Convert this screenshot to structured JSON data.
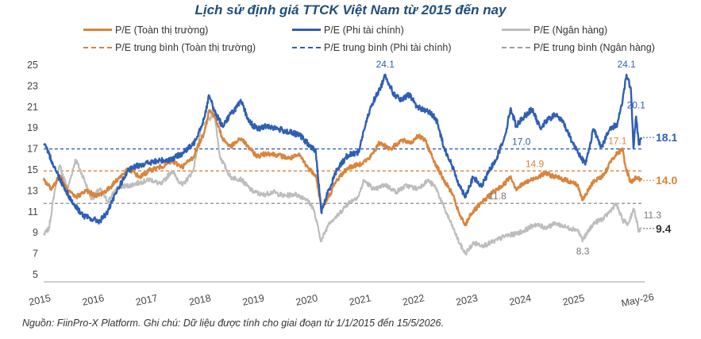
{
  "chart_data": {
    "type": "line",
    "title": "Lịch sử định giá TTCK Việt Nam từ 2015 đến nay",
    "source_note": "Nguồn: FiinPro-X Platform. Ghi chú: Dữ liệu được tính cho giai đoạn từ 1/1/2015 đến 15/5/2026.",
    "x_ticks": [
      "2015",
      "2016",
      "2017",
      "2018",
      "2019",
      "2020",
      "2021",
      "2022",
      "2023",
      "2024",
      "2025",
      "May-26"
    ],
    "y_ticks": [
      5,
      7,
      9,
      11,
      13,
      15,
      17,
      19,
      21,
      23,
      25
    ],
    "ylim": [
      5,
      25
    ],
    "grid": false,
    "legend_position": "top",
    "series": [
      {
        "name": "P/E (Toàn thị trường)",
        "color": "#d9843c",
        "style": "solid",
        "points": [
          [
            2015.0,
            14.0
          ],
          [
            2015.15,
            13.2
          ],
          [
            2015.3,
            14.5
          ],
          [
            2015.45,
            13.0
          ],
          [
            2015.6,
            12.4
          ],
          [
            2015.8,
            13.0
          ],
          [
            2016.0,
            12.5
          ],
          [
            2016.2,
            13.1
          ],
          [
            2016.4,
            14.2
          ],
          [
            2016.6,
            15.1
          ],
          [
            2016.8,
            14.3
          ],
          [
            2017.0,
            15.0
          ],
          [
            2017.2,
            15.3
          ],
          [
            2017.4,
            15.8
          ],
          [
            2017.6,
            15.3
          ],
          [
            2017.8,
            16.2
          ],
          [
            2018.0,
            18.5
          ],
          [
            2018.1,
            20.7
          ],
          [
            2018.2,
            20.2
          ],
          [
            2018.35,
            18.0
          ],
          [
            2018.5,
            17.2
          ],
          [
            2018.7,
            18.0
          ],
          [
            2018.9,
            16.8
          ],
          [
            2019.0,
            16.3
          ],
          [
            2019.2,
            16.6
          ],
          [
            2019.4,
            16.4
          ],
          [
            2019.6,
            16.1
          ],
          [
            2019.8,
            16.4
          ],
          [
            2019.95,
            15.2
          ],
          [
            2020.1,
            14.5
          ],
          [
            2020.2,
            11.4
          ],
          [
            2020.3,
            12.0
          ],
          [
            2020.5,
            14.1
          ],
          [
            2020.7,
            15.2
          ],
          [
            2020.9,
            15.5
          ],
          [
            2021.0,
            15.8
          ],
          [
            2021.1,
            16.1
          ],
          [
            2021.3,
            17.6
          ],
          [
            2021.5,
            17.0
          ],
          [
            2021.7,
            17.8
          ],
          [
            2021.9,
            17.6
          ],
          [
            2022.0,
            18.3
          ],
          [
            2022.15,
            17.8
          ],
          [
            2022.3,
            16.0
          ],
          [
            2022.5,
            14.0
          ],
          [
            2022.65,
            12.8
          ],
          [
            2022.8,
            10.6
          ],
          [
            2022.9,
            9.7
          ],
          [
            2023.0,
            10.8
          ],
          [
            2023.2,
            11.8
          ],
          [
            2023.4,
            12.8
          ],
          [
            2023.6,
            13.5
          ],
          [
            2023.75,
            14.4
          ],
          [
            2023.85,
            13.2
          ],
          [
            2024.0,
            13.7
          ],
          [
            2024.2,
            14.2
          ],
          [
            2024.4,
            14.7
          ],
          [
            2024.6,
            14.3
          ],
          [
            2024.8,
            14.0
          ],
          [
            2025.0,
            13.6
          ],
          [
            2025.1,
            12.1
          ],
          [
            2025.3,
            13.9
          ],
          [
            2025.5,
            14.5
          ],
          [
            2025.65,
            16.1
          ],
          [
            2025.75,
            16.6
          ],
          [
            2025.85,
            16.9
          ],
          [
            2025.9,
            15.3
          ],
          [
            2026.0,
            13.8
          ],
          [
            2026.1,
            14.3
          ],
          [
            2026.2,
            14.0
          ]
        ]
      },
      {
        "name": "P/E (Phi tài chính)",
        "color": "#2f5fb3",
        "style": "solid",
        "points": [
          [
            2015.0,
            17.5
          ],
          [
            2015.1,
            16.5
          ],
          [
            2015.25,
            14.7
          ],
          [
            2015.4,
            13.2
          ],
          [
            2015.55,
            11.8
          ],
          [
            2015.75,
            10.6
          ],
          [
            2015.9,
            10.3
          ],
          [
            2016.05,
            10.1
          ],
          [
            2016.2,
            11.0
          ],
          [
            2016.4,
            13.3
          ],
          [
            2016.6,
            15.0
          ],
          [
            2016.8,
            15.5
          ],
          [
            2017.0,
            15.7
          ],
          [
            2017.2,
            15.9
          ],
          [
            2017.4,
            16.0
          ],
          [
            2017.6,
            16.6
          ],
          [
            2017.8,
            17.4
          ],
          [
            2018.0,
            19.8
          ],
          [
            2018.1,
            22.1
          ],
          [
            2018.2,
            20.6
          ],
          [
            2018.35,
            19.2
          ],
          [
            2018.5,
            20.3
          ],
          [
            2018.7,
            21.5
          ],
          [
            2018.85,
            19.6
          ],
          [
            2019.0,
            18.9
          ],
          [
            2019.2,
            19.2
          ],
          [
            2019.4,
            18.9
          ],
          [
            2019.6,
            18.6
          ],
          [
            2019.8,
            18.3
          ],
          [
            2019.95,
            17.5
          ],
          [
            2020.1,
            16.7
          ],
          [
            2020.2,
            11.0
          ],
          [
            2020.3,
            12.5
          ],
          [
            2020.5,
            15.1
          ],
          [
            2020.7,
            16.4
          ],
          [
            2020.9,
            16.7
          ],
          [
            2021.0,
            18.8
          ],
          [
            2021.15,
            21.3
          ],
          [
            2021.3,
            22.7
          ],
          [
            2021.4,
            24.1
          ],
          [
            2021.55,
            22.3
          ],
          [
            2021.7,
            21.6
          ],
          [
            2021.85,
            22.2
          ],
          [
            2022.0,
            21.0
          ],
          [
            2022.2,
            20.6
          ],
          [
            2022.35,
            19.9
          ],
          [
            2022.5,
            17.2
          ],
          [
            2022.65,
            15.4
          ],
          [
            2022.8,
            13.4
          ],
          [
            2022.9,
            12.5
          ],
          [
            2023.05,
            14.3
          ],
          [
            2023.2,
            13.4
          ],
          [
            2023.35,
            14.9
          ],
          [
            2023.5,
            16.3
          ],
          [
            2023.65,
            18.4
          ],
          [
            2023.75,
            20.9
          ],
          [
            2023.85,
            19.2
          ],
          [
            2024.0,
            20.1
          ],
          [
            2024.15,
            20.8
          ],
          [
            2024.3,
            19.0
          ],
          [
            2024.45,
            19.8
          ],
          [
            2024.6,
            20.3
          ],
          [
            2024.75,
            19.4
          ],
          [
            2024.9,
            17.7
          ],
          [
            2025.05,
            16.4
          ],
          [
            2025.15,
            15.5
          ],
          [
            2025.3,
            18.9
          ],
          [
            2025.45,
            17.2
          ],
          [
            2025.6,
            18.8
          ],
          [
            2025.75,
            19.4
          ],
          [
            2025.85,
            21.8
          ],
          [
            2025.92,
            24.1
          ],
          [
            2026.0,
            22.8
          ],
          [
            2026.05,
            17.1
          ],
          [
            2026.1,
            20.1
          ],
          [
            2026.15,
            17.4
          ],
          [
            2026.2,
            18.1
          ]
        ]
      },
      {
        "name": "P/E (Ngân hàng)",
        "color": "#bdbdbd",
        "style": "solid",
        "points": [
          [
            2015.0,
            8.8
          ],
          [
            2015.1,
            9.4
          ],
          [
            2015.2,
            12.8
          ],
          [
            2015.3,
            15.4
          ],
          [
            2015.45,
            13.2
          ],
          [
            2015.6,
            16.0
          ],
          [
            2015.75,
            14.2
          ],
          [
            2015.9,
            12.2
          ],
          [
            2016.05,
            13.2
          ],
          [
            2016.2,
            12.0
          ],
          [
            2016.4,
            13.4
          ],
          [
            2016.6,
            13.5
          ],
          [
            2016.8,
            13.8
          ],
          [
            2017.0,
            14.1
          ],
          [
            2017.2,
            13.6
          ],
          [
            2017.4,
            14.9
          ],
          [
            2017.6,
            13.5
          ],
          [
            2017.8,
            14.9
          ],
          [
            2017.95,
            19.0
          ],
          [
            2018.1,
            19.8
          ],
          [
            2018.2,
            20.4
          ],
          [
            2018.3,
            16.3
          ],
          [
            2018.5,
            14.3
          ],
          [
            2018.7,
            14.1
          ],
          [
            2018.9,
            13.0
          ],
          [
            2019.1,
            12.6
          ],
          [
            2019.3,
            12.9
          ],
          [
            2019.5,
            12.5
          ],
          [
            2019.7,
            12.7
          ],
          [
            2019.9,
            12.3
          ],
          [
            2020.05,
            11.4
          ],
          [
            2020.2,
            8.2
          ],
          [
            2020.35,
            10.0
          ],
          [
            2020.5,
            10.6
          ],
          [
            2020.7,
            11.8
          ],
          [
            2020.9,
            12.5
          ],
          [
            2021.0,
            14.0
          ],
          [
            2021.2,
            13.1
          ],
          [
            2021.4,
            13.6
          ],
          [
            2021.6,
            12.9
          ],
          [
            2021.8,
            13.5
          ],
          [
            2022.0,
            13.2
          ],
          [
            2022.2,
            14.0
          ],
          [
            2022.35,
            13.3
          ],
          [
            2022.5,
            11.4
          ],
          [
            2022.65,
            9.7
          ],
          [
            2022.8,
            7.9
          ],
          [
            2022.9,
            7.0
          ],
          [
            2023.05,
            8.0
          ],
          [
            2023.25,
            7.8
          ],
          [
            2023.45,
            8.2
          ],
          [
            2023.65,
            8.7
          ],
          [
            2023.85,
            8.9
          ],
          [
            2024.0,
            9.2
          ],
          [
            2024.2,
            9.8
          ],
          [
            2024.4,
            9.5
          ],
          [
            2024.6,
            9.9
          ],
          [
            2024.8,
            9.5
          ],
          [
            2025.0,
            9.3
          ],
          [
            2025.1,
            8.3
          ],
          [
            2025.3,
            9.9
          ],
          [
            2025.5,
            10.4
          ],
          [
            2025.65,
            11.3
          ],
          [
            2025.72,
            11.8
          ],
          [
            2025.85,
            10.2
          ],
          [
            2025.95,
            9.8
          ],
          [
            2026.05,
            11.3
          ],
          [
            2026.1,
            10.4
          ],
          [
            2026.15,
            9.1
          ],
          [
            2026.2,
            9.4
          ]
        ]
      },
      {
        "name": "P/E trung bình (Toàn thị trường)",
        "color": "#d9843c",
        "style": "dashed",
        "value": 14.9
      },
      {
        "name": "P/E trung bình (Phi tài chính)",
        "color": "#2f5fb3",
        "style": "dashed",
        "value": 17.0
      },
      {
        "name": "P/E trung bình (Ngân hàng)",
        "color": "#9e9e9e",
        "style": "dashed",
        "value": 11.8
      }
    ],
    "annotations": [
      {
        "text": "24.1",
        "x": 2021.4,
        "y": 24.1,
        "color": "#2f5fb3",
        "bold": false
      },
      {
        "text": "24.1",
        "x": 2025.92,
        "y": 24.1,
        "color": "#2f5fb3",
        "bold": false
      },
      {
        "text": "20.1",
        "x": 2026.1,
        "y": 20.1,
        "color": "#2f5fb3",
        "bold": false
      },
      {
        "text": "17.0",
        "x": 2023.95,
        "y": 17.0,
        "color": "#2f5fb3",
        "bold": false
      },
      {
        "text": "17.1",
        "x": 2025.75,
        "y": 17.1,
        "color": "#d9843c",
        "bold": false
      },
      {
        "text": "14.9",
        "x": 2024.2,
        "y": 14.9,
        "color": "#d9843c",
        "bold": false
      },
      {
        "text": "11.8",
        "x": 2023.5,
        "y": 11.8,
        "color": "#777777",
        "bold": false
      },
      {
        "text": "11.3",
        "x": 2026.15,
        "y": 11.3,
        "color": "#777777",
        "bold": false
      },
      {
        "text": "8.3",
        "x": 2025.1,
        "y": 8.3,
        "color": "#777777",
        "bold": false
      },
      {
        "text": "18.1",
        "x": 2026.2,
        "y": 18.1,
        "color": "#2f5fb3",
        "bold": true
      },
      {
        "text": "14.0",
        "x": 2026.2,
        "y": 14.0,
        "color": "#d9843c",
        "bold": true
      },
      {
        "text": "9.4",
        "x": 2026.2,
        "y": 9.4,
        "color": "#333333",
        "bold": true
      }
    ]
  }
}
